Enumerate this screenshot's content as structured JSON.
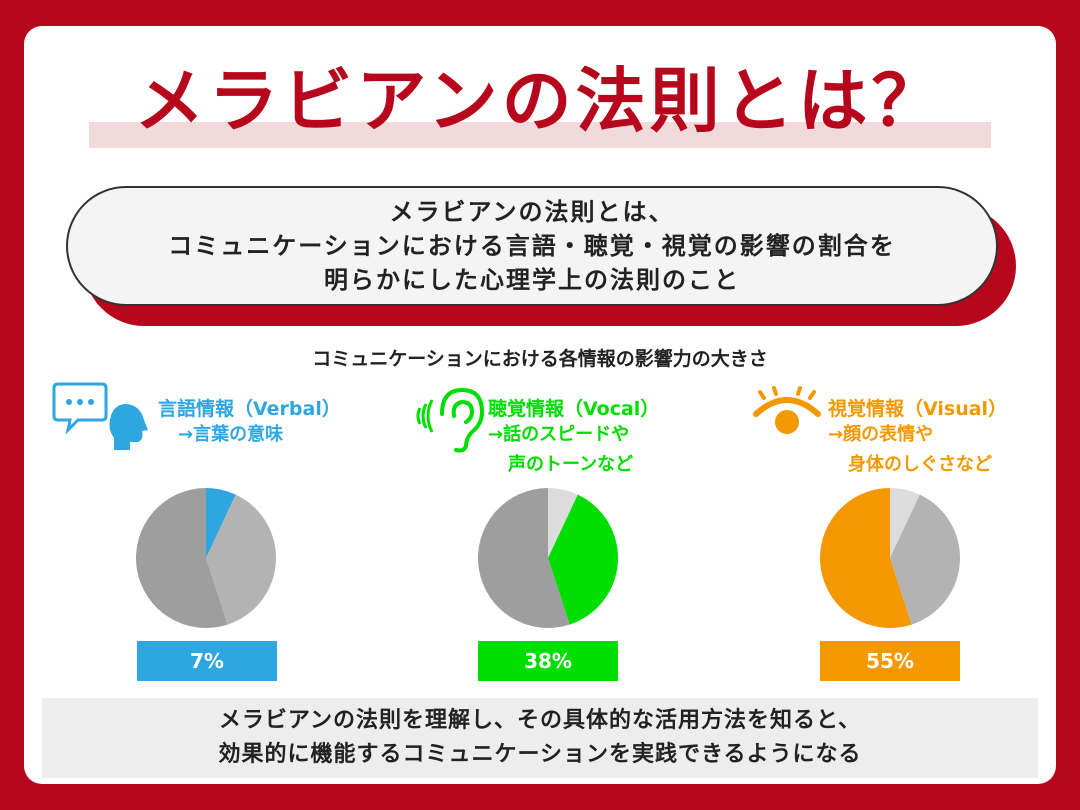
{
  "title": "メラビアンの法則とは？",
  "definition": {
    "lines": [
      "メラビアンの法則とは、",
      "コミュニケーションにおける言語・聴覚・視覚の影響の割合を",
      "明らかにした心理学上の法則のこと"
    ]
  },
  "colors": {
    "brand_red": "#b7071c",
    "verbal": "#2ea7e0",
    "vocal": "#00dd00",
    "visual": "#f39800",
    "pie_light": "#dcdcdc",
    "pie_mid": "#b3b3b3",
    "pie_dark": "#9e9e9e"
  },
  "chart_data": {
    "type": "pie",
    "title": "コミュニケーションにおける各情報の影響力の大きさ",
    "categories": [
      "言語情報（Verbal）",
      "聴覚情報（Vocal）",
      "視覚情報（Visual）"
    ],
    "values": [
      7,
      38,
      55
    ],
    "unit": "%",
    "series": [
      {
        "name": "言語情報（Verbal）",
        "description": "→言葉の意味",
        "value": 7,
        "label": "7%",
        "color": "#2ea7e0",
        "icon": "speech-bubble-head-icon"
      },
      {
        "name": "聴覚情報（Vocal）",
        "description": "→話のスピードや\n声のトーンなど",
        "value": 38,
        "label": "38%",
        "color": "#00dd00",
        "icon": "ear-icon"
      },
      {
        "name": "視覚情報（Visual）",
        "description": "→顔の表情や\n身体のしぐさなど",
        "value": 55,
        "label": "55%",
        "color": "#f39800",
        "icon": "eye-icon"
      }
    ]
  },
  "columns": [
    {
      "title": "言語情報（Verbal）",
      "sub1": "→言葉の意味",
      "sub2": "",
      "pct": "7%"
    },
    {
      "title": "聴覚情報（Vocal）",
      "sub1": "→話のスピードや",
      "sub2": "声のトーンなど",
      "pct": "38%"
    },
    {
      "title": "視覚情報（Visual）",
      "sub1": "→顔の表情や",
      "sub2": "身体のしぐさなど",
      "pct": "55%"
    }
  ],
  "bottom": {
    "lines": [
      "メラビアンの法則を理解し、その具体的な活用方法を知ると、",
      "効果的に機能するコミュニケーションを実践できるようになる"
    ]
  }
}
